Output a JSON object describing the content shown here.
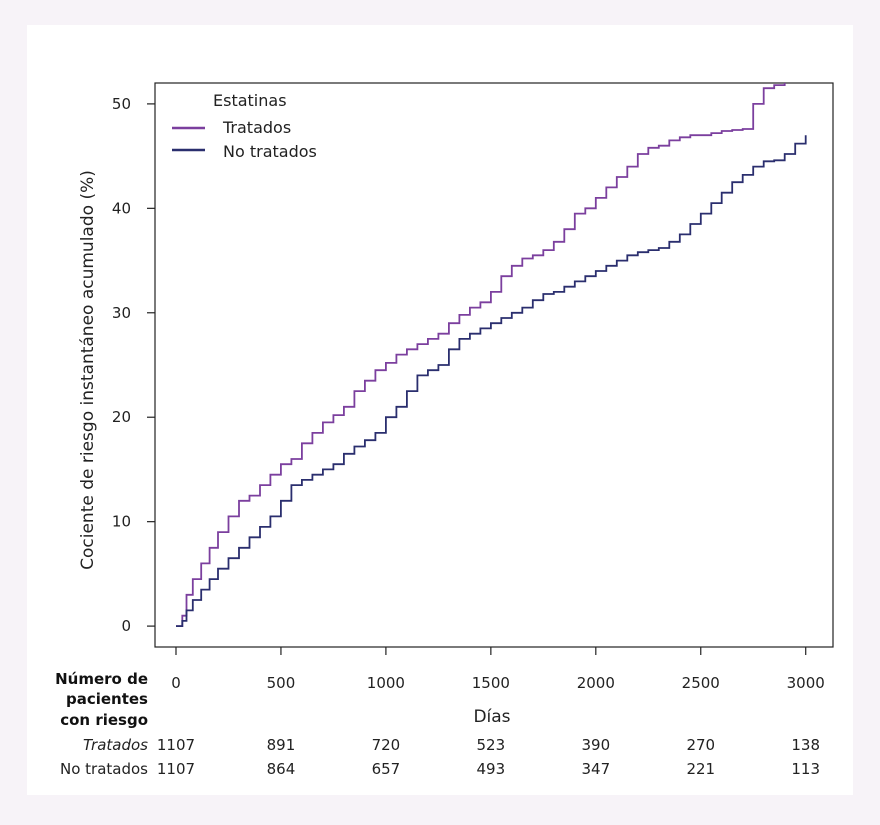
{
  "chart_data": {
    "type": "line",
    "ylabel": "Cociente de riesgo instantáneo acumulado (%)",
    "xlabel": "Días",
    "xlim": [
      -100,
      3130
    ],
    "ylim": [
      -2,
      52
    ],
    "xticks": [
      0,
      500,
      1000,
      1500,
      2000,
      2500,
      3000
    ],
    "yticks": [
      0,
      10,
      20,
      30,
      40,
      50
    ],
    "step": true,
    "legend": {
      "title": "Estatinas",
      "position": "top-left"
    },
    "series": [
      {
        "name": "Tratados",
        "color": "#7b3f9e",
        "x": [
          0,
          30,
          50,
          80,
          120,
          160,
          200,
          250,
          300,
          350,
          400,
          450,
          500,
          550,
          600,
          650,
          700,
          750,
          800,
          850,
          900,
          950,
          1000,
          1050,
          1100,
          1150,
          1200,
          1250,
          1300,
          1350,
          1400,
          1450,
          1500,
          1550,
          1600,
          1650,
          1700,
          1750,
          1800,
          1850,
          1900,
          1950,
          2000,
          2050,
          2100,
          2150,
          2200,
          2250,
          2300,
          2350,
          2400,
          2450,
          2500,
          2550,
          2600,
          2650,
          2700,
          2750,
          2800,
          2850,
          2900
        ],
        "y": [
          0,
          1,
          3,
          4.5,
          6,
          7.5,
          9,
          10.5,
          12,
          12.5,
          13.5,
          14.5,
          15.5,
          16,
          17.5,
          18.5,
          19.5,
          20.2,
          21,
          22.5,
          23.5,
          24.5,
          25.2,
          26,
          26.5,
          27,
          27.5,
          28,
          29,
          29.8,
          30.5,
          31,
          32,
          33.5,
          34.5,
          35.2,
          35.5,
          36,
          36.8,
          38,
          39.5,
          40,
          41,
          42,
          43,
          44,
          45.2,
          45.8,
          46,
          46.5,
          46.8,
          47,
          47,
          47.2,
          47.4,
          47.5,
          47.6,
          50,
          51.5,
          51.8,
          52
        ]
      },
      {
        "name": "No tratados",
        "color": "#2a2e6e",
        "x": [
          0,
          30,
          50,
          80,
          120,
          160,
          200,
          250,
          300,
          350,
          400,
          450,
          500,
          550,
          600,
          650,
          700,
          750,
          800,
          850,
          900,
          950,
          1000,
          1050,
          1100,
          1150,
          1200,
          1250,
          1300,
          1350,
          1400,
          1450,
          1500,
          1550,
          1600,
          1650,
          1700,
          1750,
          1800,
          1850,
          1900,
          1950,
          2000,
          2050,
          2100,
          2150,
          2200,
          2250,
          2300,
          2350,
          2400,
          2450,
          2500,
          2550,
          2600,
          2650,
          2700,
          2750,
          2800,
          2850,
          2900,
          2950,
          3000
        ],
        "y": [
          0,
          0.5,
          1.5,
          2.5,
          3.5,
          4.5,
          5.5,
          6.5,
          7.5,
          8.5,
          9.5,
          10.5,
          12,
          13.5,
          14,
          14.5,
          15,
          15.5,
          16.5,
          17.2,
          17.8,
          18.5,
          20,
          21,
          22.5,
          24,
          24.5,
          25,
          26.5,
          27.5,
          28,
          28.5,
          29,
          29.5,
          30,
          30.5,
          31.2,
          31.8,
          32,
          32.5,
          33,
          33.5,
          34,
          34.5,
          35,
          35.5,
          35.8,
          36,
          36.2,
          36.8,
          37.5,
          38.5,
          39.5,
          40.5,
          41.5,
          42.5,
          43.2,
          44,
          44.5,
          44.6,
          45.2,
          46.2,
          47
        ]
      }
    ]
  },
  "risk_table": {
    "header": [
      "Número de",
      "pacientes",
      "con riesgo"
    ],
    "rows": [
      {
        "label": "Tratados",
        "values": [
          "1107",
          "891",
          "720",
          "523",
          "390",
          "270",
          "138"
        ]
      },
      {
        "label": "No tratados",
        "values": [
          "1107",
          "864",
          "657",
          "493",
          "347",
          "221",
          "113"
        ]
      }
    ]
  },
  "colors": {
    "background": "#f7f3f8",
    "card": "#ffffff",
    "tratados": "#7b3f9e",
    "no_tratados": "#2a2e6e"
  }
}
